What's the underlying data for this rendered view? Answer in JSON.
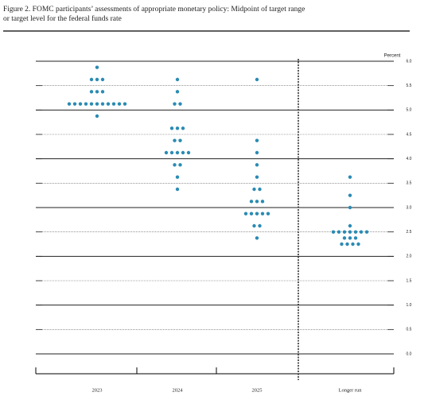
{
  "chart_data": {
    "type": "dot",
    "title": "Figure 2.  FOMC participants’ assessments of appropriate monetary policy: Midpoint of target range",
    "subtitle": "or target level for the federal funds rate",
    "y_label": "Percent",
    "color": "#2b8bb3",
    "categories": [
      "2023",
      "2024",
      "2025",
      "Longer run"
    ],
    "values": [
      [
        5.875,
        5.625,
        5.625,
        5.625,
        5.375,
        5.375,
        5.375,
        5.125,
        5.125,
        5.125,
        5.125,
        5.125,
        5.125,
        5.125,
        5.125,
        5.125,
        5.125,
        5.125,
        4.875
      ],
      [
        5.625,
        5.375,
        5.125,
        5.125,
        4.625,
        4.625,
        4.625,
        4.375,
        4.375,
        4.125,
        4.125,
        4.125,
        4.125,
        4.125,
        3.875,
        3.875,
        3.625,
        3.375
      ],
      [
        5.625,
        4.375,
        4.125,
        3.875,
        3.625,
        3.375,
        3.375,
        3.125,
        3.125,
        3.125,
        2.875,
        2.875,
        2.875,
        2.875,
        2.875,
        2.625,
        2.625,
        2.375
      ],
      [
        3.625,
        3.25,
        3.0,
        2.625,
        2.5,
        2.5,
        2.5,
        2.5,
        2.5,
        2.5,
        2.5,
        2.375,
        2.375,
        2.375,
        2.25,
        2.25,
        2.25,
        2.25
      ]
    ],
    "ylim": [
      0,
      6
    ],
    "yticks": [
      {
        "value": 0,
        "label": "0.0"
      },
      0.5,
      {
        "value": 1,
        "label": "1.0"
      },
      1.5,
      {
        "value": 2,
        "label": "2.0"
      },
      2.5,
      {
        "value": 3,
        "label": "3.0"
      },
      3.5,
      {
        "value": 4,
        "label": "4.0"
      },
      4.5,
      {
        "value": 5,
        "label": "5.0"
      },
      5.5,
      {
        "value": 6,
        "label": "6.0"
      }
    ],
    "grid": true
  }
}
